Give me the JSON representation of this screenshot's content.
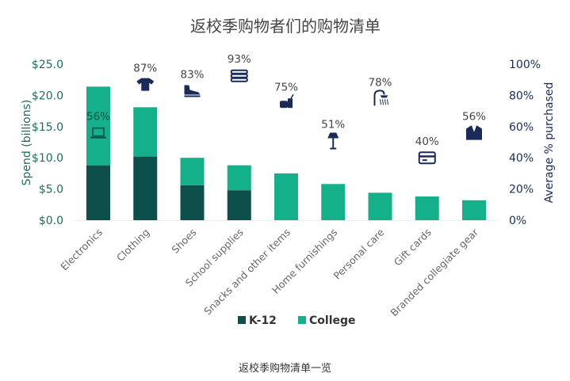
{
  "chart_data": {
    "type": "bar",
    "stacked": true,
    "title": "返校季购物者们的购物清单",
    "ylabel": "Spend (billions)",
    "y2label": "Average % purchased",
    "ylim": [
      0,
      25
    ],
    "y2lim": [
      0,
      100
    ],
    "yticks": [
      "$0.0",
      "$5.0",
      "$10.0",
      "$15.0",
      "$20.0",
      "$25.0"
    ],
    "y2ticks": [
      "0%",
      "20%",
      "40%",
      "60%",
      "80%",
      "100%"
    ],
    "categories": [
      "Electronics",
      "Clothing",
      "Shoes",
      "School supplies",
      "Snacks and other items",
      "Home furnishings",
      "Personal care",
      "Gift cards",
      "Branded collegiate gear"
    ],
    "series": [
      {
        "name": "K-12",
        "color": "#0d4f4a",
        "values": [
          8.8,
          10.2,
          5.6,
          4.8,
          0,
          0,
          0,
          0,
          0
        ]
      },
      {
        "name": "College",
        "color": "#14b08a",
        "values": [
          12.6,
          7.9,
          4.4,
          4.0,
          7.5,
          5.8,
          4.4,
          3.8,
          3.2
        ]
      }
    ],
    "percent_purchased": [
      56,
      87,
      83,
      93,
      75,
      51,
      78,
      40,
      56
    ],
    "percent_labels": [
      "56%",
      "87%",
      "83%",
      "93%",
      "75%",
      "51%",
      "78%",
      "40%",
      "56%"
    ],
    "icons": [
      "laptop-icon",
      "tshirt-icon",
      "sneaker-icon",
      "books-icon",
      "burger-drink-icon",
      "lamp-icon",
      "shower-icon",
      "credit-card-icon",
      "blazer-icon"
    ],
    "icon_color": "#1a2b5a",
    "legend": "bottom",
    "grid": false
  },
  "caption": "返校季购物清单一览"
}
